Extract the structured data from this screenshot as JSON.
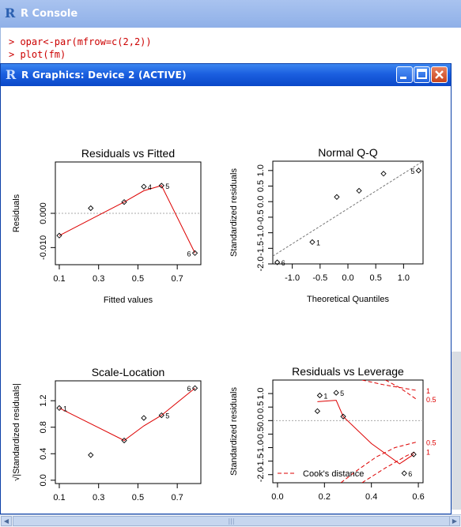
{
  "console": {
    "title": "R Console",
    "lines": [
      "> opar<-par(mfrow=c(2,2))",
      "> plot(fm)"
    ]
  },
  "graphics_window": {
    "title": "R Graphics: Device 2 (ACTIVE)",
    "buttons": {
      "minimize": "minimize",
      "maximize": "maximize",
      "close": "close"
    }
  },
  "colors": {
    "fit_line": "#dd0000",
    "reference_line": "#aaaaaa",
    "titlebar": "#1b5fe0"
  },
  "chart_data": [
    {
      "type": "scatter",
      "title": "Residuals vs Fitted",
      "xlabel": "Fitted values",
      "ylabel": "Residuals",
      "xlim": [
        0.08,
        0.82
      ],
      "ylim": [
        -0.015,
        0.015
      ],
      "xticks": [
        "0.1",
        "0.3",
        "0.5",
        "0.7"
      ],
      "yticks": [
        "-0.010",
        "0.000"
      ],
      "points": [
        [
          0.1,
          -0.0065
        ],
        [
          0.26,
          0.0015
        ],
        [
          0.43,
          0.0033
        ],
        [
          0.53,
          0.0078
        ],
        [
          0.62,
          0.0081
        ],
        [
          0.79,
          -0.0116
        ]
      ],
      "smooth": [
        [
          0.1,
          -0.0065
        ],
        [
          0.43,
          0.0033
        ],
        [
          0.53,
          0.0066
        ],
        [
          0.62,
          0.0081
        ],
        [
          0.79,
          -0.0116
        ]
      ],
      "point_labels": [
        {
          "point": 3,
          "text": "4"
        },
        {
          "point": 4,
          "text": "5"
        },
        {
          "point": 5,
          "text": "6"
        }
      ],
      "reference_y": 0
    },
    {
      "type": "scatter",
      "title": "Normal Q-Q",
      "xlabel": "Theoretical Quantiles",
      "ylabel": "Standardized residuals",
      "xlim": [
        -1.35,
        1.35
      ],
      "ylim": [
        -2.0,
        1.3
      ],
      "xticks": [
        "-1.0",
        "-0.5",
        "0.0",
        "0.5",
        "1.0"
      ],
      "yticks": [
        "-2.0",
        "-1.5",
        "-1.0",
        "-0.5",
        "0.0",
        "0.5",
        "1.0"
      ],
      "points": [
        [
          -1.27,
          -1.95
        ],
        [
          -0.64,
          -1.3
        ],
        [
          -0.2,
          0.15
        ],
        [
          0.2,
          0.35
        ],
        [
          0.64,
          0.9
        ],
        [
          1.27,
          1.0
        ]
      ],
      "reference_line": [
        [
          -1.35,
          -1.75
        ],
        [
          1.35,
          1.3
        ]
      ],
      "point_labels": [
        {
          "point": 0,
          "text": "6"
        },
        {
          "point": 1,
          "text": "1"
        },
        {
          "point": 5,
          "text": "5"
        }
      ]
    },
    {
      "type": "scatter",
      "title": "Scale-Location",
      "xlabel": "Fitted values",
      "ylabel": "√|Standardized residuals|",
      "xlim": [
        0.08,
        0.82
      ],
      "ylim": [
        -0.05,
        1.5
      ],
      "xticks": [
        "0.1",
        "0.3",
        "0.5",
        "0.7"
      ],
      "yticks": [
        "0.0",
        "0.4",
        "0.8",
        "1.2"
      ],
      "points": [
        [
          0.1,
          1.09
        ],
        [
          0.26,
          0.38
        ],
        [
          0.43,
          0.6
        ],
        [
          0.53,
          0.94
        ],
        [
          0.62,
          0.98
        ],
        [
          0.79,
          1.39
        ]
      ],
      "smooth": [
        [
          0.1,
          1.09
        ],
        [
          0.43,
          0.6
        ],
        [
          0.53,
          0.82
        ],
        [
          0.62,
          0.98
        ],
        [
          0.79,
          1.39
        ]
      ],
      "point_labels": [
        {
          "point": 0,
          "text": "1"
        },
        {
          "point": 4,
          "text": "5"
        },
        {
          "point": 5,
          "text": "6"
        }
      ]
    },
    {
      "type": "scatter",
      "title": "Residuals vs Leverage",
      "xlabel": "Leverage",
      "ylabel": "Standardized residuals",
      "xlim": [
        -0.02,
        0.62
      ],
      "ylim": [
        -2.3,
        1.5
      ],
      "xticks": [
        "0.0",
        "0.2",
        "0.4",
        "0.6"
      ],
      "yticks": [
        "-2.0",
        "-1.5",
        "-1.0",
        "-0.5",
        "0.0",
        "0.5",
        "1.0"
      ],
      "points": [
        [
          0.17,
          0.35
        ],
        [
          0.18,
          0.93
        ],
        [
          0.25,
          1.03
        ],
        [
          0.28,
          0.15
        ],
        [
          0.54,
          -1.95
        ],
        [
          0.58,
          -1.25
        ]
      ],
      "smooth": [
        [
          0.17,
          0.7
        ],
        [
          0.25,
          0.75
        ],
        [
          0.28,
          0.15
        ],
        [
          0.4,
          -0.85
        ],
        [
          0.52,
          -1.6
        ],
        [
          0.58,
          -1.25
        ]
      ],
      "point_labels": [
        {
          "point": 1,
          "text": "1"
        },
        {
          "point": 2,
          "text": "5"
        },
        {
          "point": 4,
          "text": "6"
        }
      ],
      "reference_y": 0,
      "cooks_contours": [
        {
          "label": "1",
          "sign": 1,
          "points": [
            [
              0.36,
              1.5
            ],
            [
              0.45,
              1.33
            ],
            [
              0.55,
              1.18
            ],
            [
              0.59,
              1.12
            ]
          ]
        },
        {
          "label": "0.5",
          "sign": 1,
          "points": [
            [
              0.46,
              1.5
            ],
            [
              0.52,
              1.22
            ],
            [
              0.59,
              0.8
            ]
          ]
        },
        {
          "label": "0.5",
          "sign": -1,
          "points": [
            [
              0.27,
              -2.3
            ],
            [
              0.33,
              -1.9
            ],
            [
              0.42,
              -1.35
            ],
            [
              0.5,
              -1.0
            ],
            [
              0.59,
              -0.8
            ]
          ]
        },
        {
          "label": "1",
          "sign": -1,
          "points": [
            [
              0.36,
              -2.3
            ],
            [
              0.46,
              -1.75
            ],
            [
              0.55,
              -1.3
            ],
            [
              0.59,
              -1.15
            ]
          ]
        }
      ],
      "legend": "Cook's distance"
    }
  ]
}
